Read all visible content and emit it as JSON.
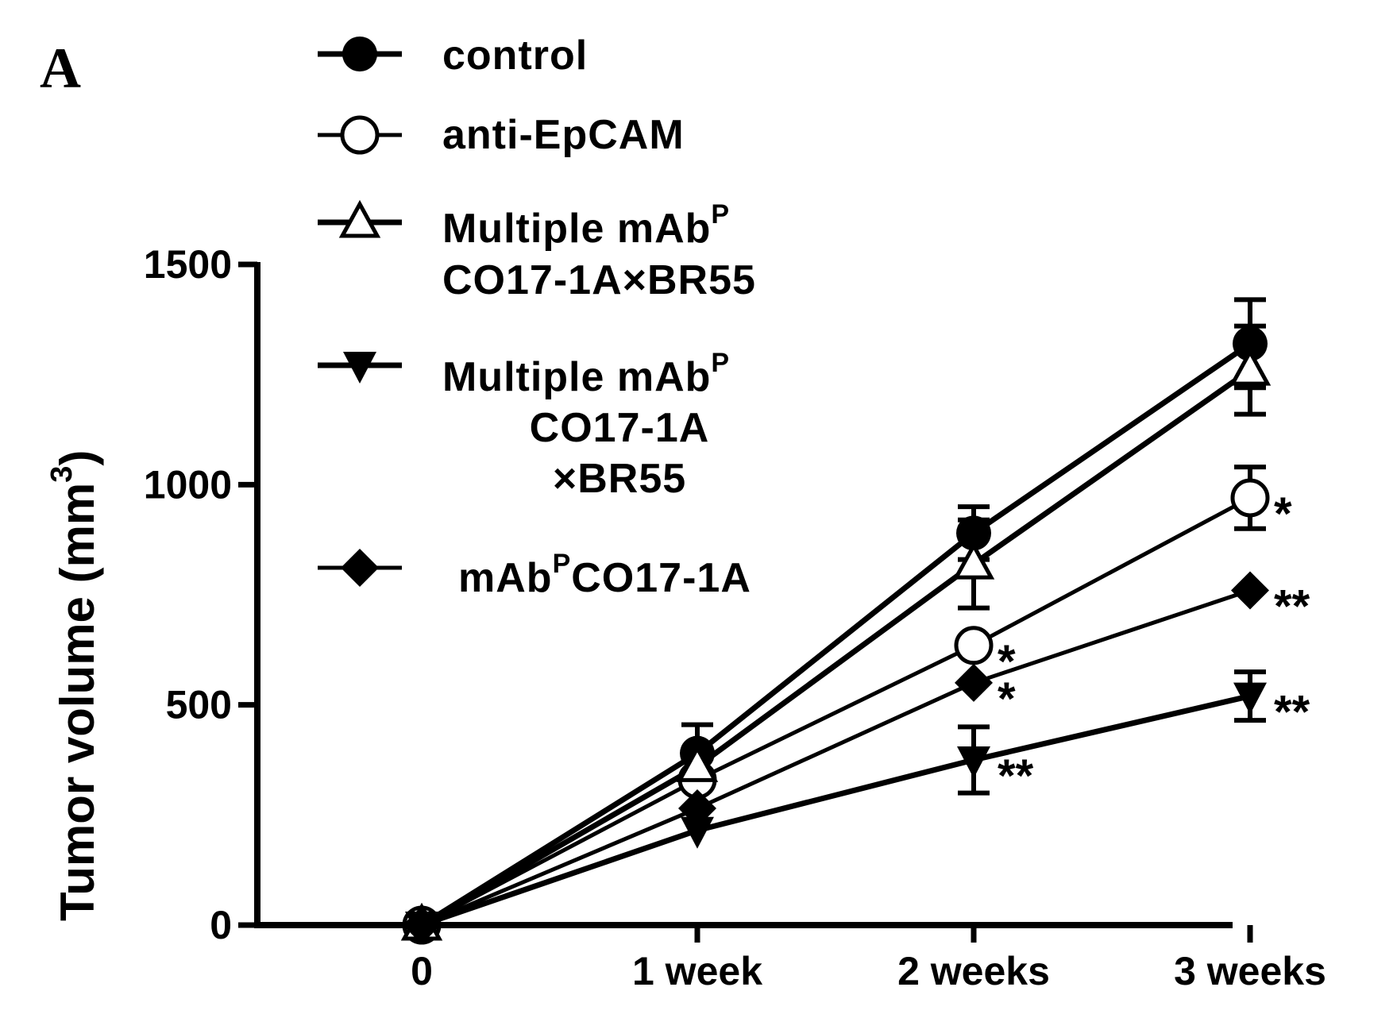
{
  "chart_data": {
    "type": "line",
    "panel_label": "A",
    "ylabel": "Tumor volume (mm",
    "ylabel_sup": "3",
    "ylabel_close": ")",
    "ylim": [
      0,
      1500
    ],
    "yticks": [
      0,
      500,
      1000,
      1500
    ],
    "categories": [
      "0",
      "1 week",
      "2 weeks",
      "3 weeks"
    ],
    "grid": false,
    "legend_position": "top-left",
    "series": [
      {
        "name": "control",
        "legend_lines": [
          {
            "text": "control"
          }
        ],
        "marker": "circle-filled",
        "stroke": "thick",
        "values": [
          0,
          390,
          890,
          1320
        ],
        "errors": [
          0,
          65,
          60,
          100
        ],
        "sig": [
          "",
          "",
          "",
          ""
        ]
      },
      {
        "name": "anti-EpCAM",
        "legend_lines": [
          {
            "text": "anti-EpCAM"
          }
        ],
        "marker": "circle-open",
        "stroke": "thin",
        "values": [
          0,
          330,
          635,
          970
        ],
        "errors": [
          0,
          0,
          0,
          70
        ],
        "sig": [
          "",
          "",
          "*",
          "*"
        ]
      },
      {
        "name": "Multiple mAbP CO17-1A×BR55",
        "legend_lines": [
          {
            "text": "Multiple mAb",
            "sup": "P"
          },
          {
            "text": "CO17-1A×BR55"
          }
        ],
        "marker": "triangle-up-open",
        "stroke": "thick",
        "values": [
          0,
          360,
          820,
          1260
        ],
        "errors": [
          0,
          0,
          100,
          100
        ],
        "sig": [
          "",
          "",
          "",
          ""
        ]
      },
      {
        "name": "Multiple mAbP CO17-1A ×BR55",
        "legend_lines": [
          {
            "text": "Multiple mAb",
            "sup": "P"
          },
          {
            "text": "CO17-1A"
          },
          {
            "text": "×BR55"
          }
        ],
        "marker": "triangle-down-filled",
        "stroke": "thick",
        "values": [
          0,
          215,
          375,
          520
        ],
        "errors": [
          0,
          0,
          75,
          55
        ],
        "sig": [
          "",
          "",
          "**",
          "**"
        ]
      },
      {
        "name": "mAbPCO17-1A",
        "legend_lines": [
          {
            "text": "mAb",
            "sup": "P",
            "after": "CO17-1A"
          }
        ],
        "marker": "diamond-filled",
        "stroke": "thin",
        "values": [
          0,
          265,
          550,
          760
        ],
        "errors": [
          0,
          0,
          0,
          0
        ],
        "sig": [
          "",
          "",
          "*",
          "**"
        ]
      }
    ]
  }
}
